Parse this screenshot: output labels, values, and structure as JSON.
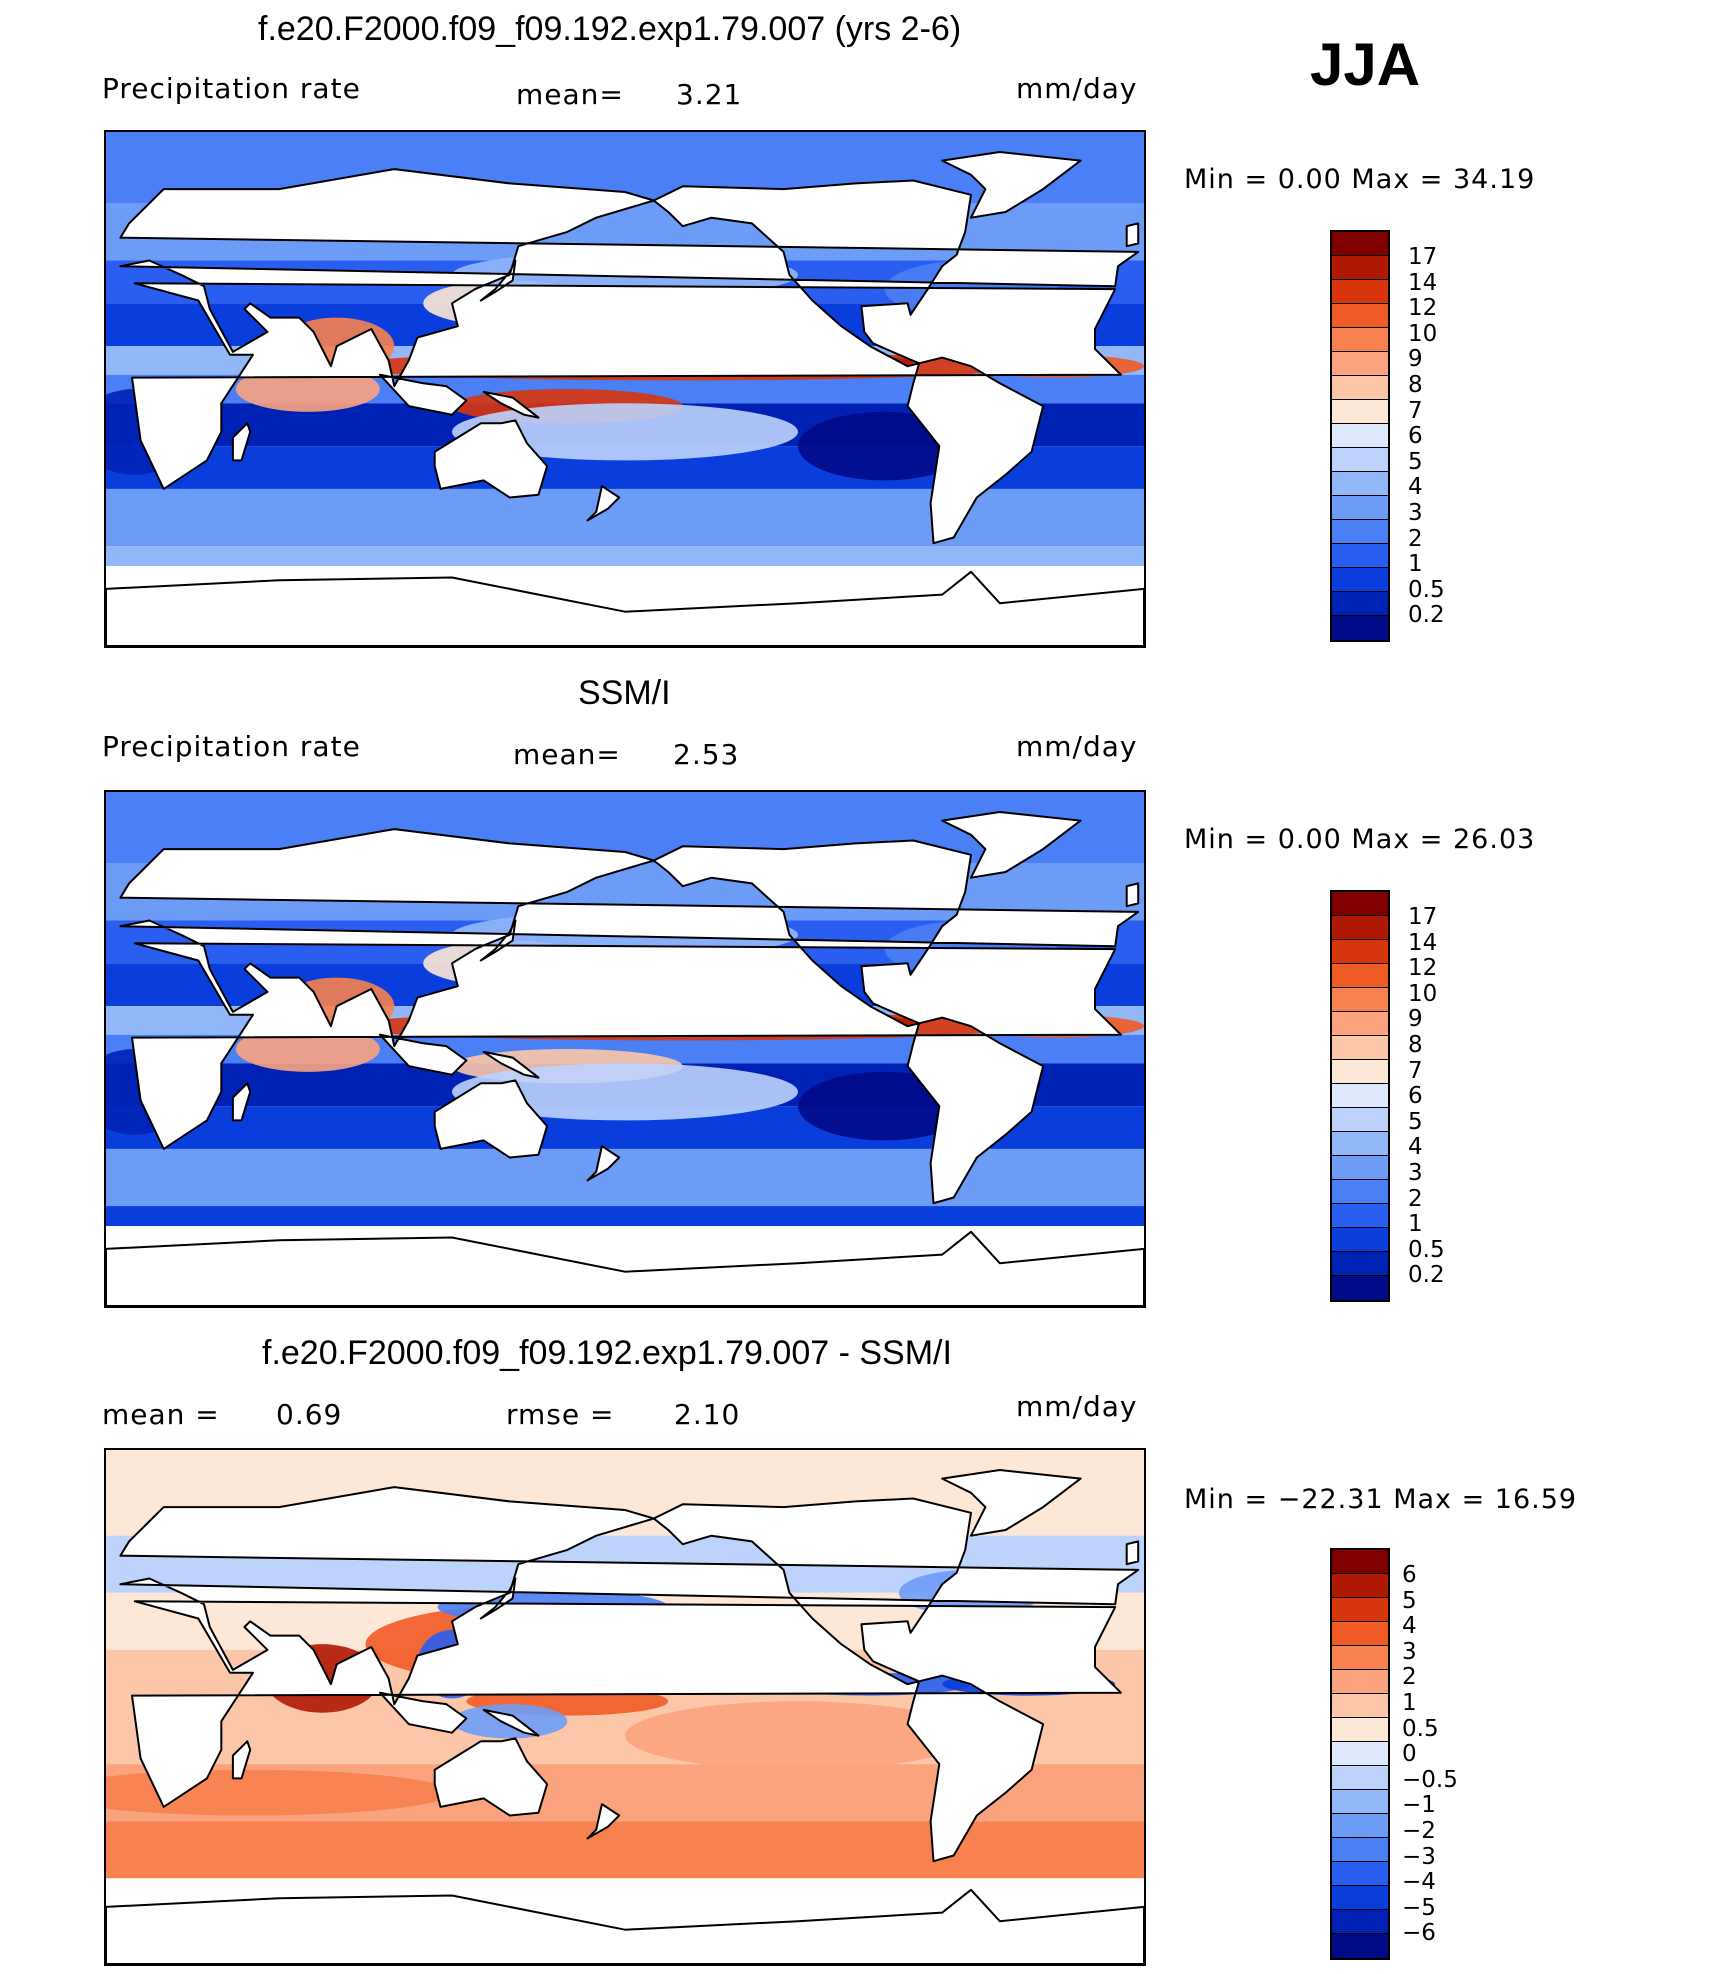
{
  "season": "JJA",
  "panels": [
    {
      "title": "f.e20.F2000.f09_f09.192.exp1.79.007 (yrs 2-6)",
      "left_label": "Precipitation  rate",
      "mid_label": "mean=",
      "mid_value": "3.21",
      "units": "mm/day",
      "minmax": "Min  =      0.00  Max  =     34.19",
      "colorbar_ticks": [
        "17",
        "14",
        "12",
        "10",
        "9",
        "8",
        "7",
        "6",
        "5",
        "4",
        "3",
        "2",
        "1",
        "0.5",
        "0.2"
      ],
      "field": "model"
    },
    {
      "title": "SSM/I",
      "left_label": "Precipitation  rate",
      "mid_label": "mean=",
      "mid_value": "2.53",
      "units": "mm/day",
      "minmax": "Min  =      0.00  Max  =     26.03",
      "colorbar_ticks": [
        "17",
        "14",
        "12",
        "10",
        "9",
        "8",
        "7",
        "6",
        "5",
        "4",
        "3",
        "2",
        "1",
        "0.5",
        "0.2"
      ],
      "field": "obs"
    },
    {
      "title": "f.e20.F2000.f09_f09.192.exp1.79.007 - SSM/I",
      "left_label": "mean  =",
      "left_value": "0.69",
      "mid_label": "rmse  =",
      "mid_value": "2.10",
      "units": "mm/day",
      "minmax": "Min  = −22.31  Max  =     16.59",
      "colorbar_ticks": [
        "6",
        "5",
        "4",
        "3",
        "2",
        "1",
        "0.5",
        "0",
        "−0.5",
        "−1",
        "−2",
        "−3",
        "−4",
        "−5",
        "−6"
      ],
      "field": "diff"
    }
  ],
  "colors": {
    "precip_scale": [
      "#000a87",
      "#0022b4",
      "#0a3edc",
      "#2a5ef0",
      "#4a7ff5",
      "#6d9cf7",
      "#93b8fa",
      "#bdd3fc",
      "#dfe9fd",
      "#fde7d6",
      "#fcc7a8",
      "#fba37f",
      "#f7814f",
      "#f15b26",
      "#d8350c",
      "#b01806",
      "#800000"
    ],
    "diff_scale": [
      "#000a87",
      "#0022b4",
      "#0a3edc",
      "#2a5ef0",
      "#4a7ff5",
      "#6d9cf7",
      "#93b8fa",
      "#bdd3fc",
      "#dfe9fd",
      "#fde7d6",
      "#fcc7a8",
      "#fba37f",
      "#f7814f",
      "#f15b26",
      "#d8350c",
      "#b01806",
      "#800000"
    ]
  }
}
